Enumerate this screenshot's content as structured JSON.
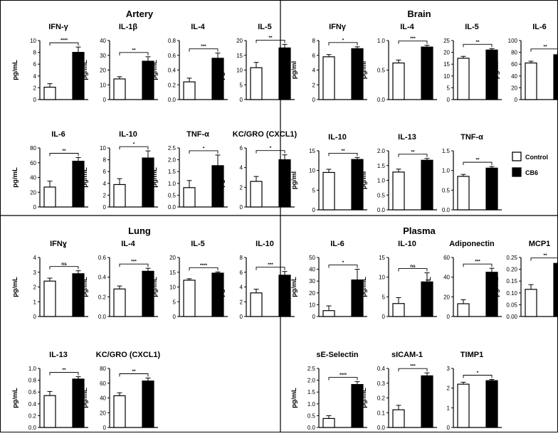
{
  "panels": [
    {
      "name": "artery",
      "title": "Artery"
    },
    {
      "name": "brain",
      "title": "Brain"
    },
    {
      "name": "lung",
      "title": "Lung"
    },
    {
      "name": "plasma",
      "title": "Plasma"
    }
  ],
  "legend": {
    "control": {
      "label": "Control",
      "color": "#ffffff"
    },
    "cb6": {
      "label": "CB6",
      "color": "#000000"
    }
  },
  "chart_data": [
    {
      "type": "bar",
      "panel": "Artery",
      "title": "IFN-γ",
      "ylabel": "pg/mL",
      "ylim": [
        0,
        10
      ],
      "ticks": [
        0,
        2,
        4,
        6,
        8,
        10
      ],
      "categories": [
        "Control",
        "CB6"
      ],
      "values": [
        2.1,
        8.0
      ],
      "errors": [
        0.6,
        0.9
      ],
      "significance": "****"
    },
    {
      "type": "bar",
      "panel": "Artery",
      "title": "IL-1β",
      "ylabel": "pg/mL",
      "ylim": [
        0,
        40
      ],
      "ticks": [
        0,
        10,
        20,
        30,
        40
      ],
      "categories": [
        "Control",
        "CB6"
      ],
      "values": [
        14,
        26
      ],
      "errors": [
        1.5,
        3
      ],
      "significance": "**"
    },
    {
      "type": "bar",
      "panel": "Artery",
      "title": "IL-4",
      "ylabel": "pg/mL",
      "ylim": [
        0,
        0.8
      ],
      "ticks": [
        0.0,
        0.2,
        0.4,
        0.6,
        0.8
      ],
      "tick_labels": [
        "0.0",
        "0.2",
        "0.4",
        "0.6",
        "0.8"
      ],
      "categories": [
        "Control",
        "CB6"
      ],
      "values": [
        0.24,
        0.56
      ],
      "errors": [
        0.05,
        0.07
      ],
      "significance": "***"
    },
    {
      "type": "bar",
      "panel": "Artery",
      "title": "IL-5",
      "ylabel": "pg/mL",
      "ylim": [
        0,
        20
      ],
      "ticks": [
        0,
        5,
        10,
        15,
        20
      ],
      "categories": [
        "Control",
        "CB6"
      ],
      "values": [
        10.8,
        17.5
      ],
      "errors": [
        1.8,
        1.2
      ],
      "significance": "**"
    },
    {
      "type": "bar",
      "panel": "Artery",
      "title": "IL-6",
      "ylabel": "pg/mL",
      "ylim": [
        0,
        80
      ],
      "ticks": [
        0,
        20,
        40,
        60,
        80
      ],
      "categories": [
        "Control",
        "CB6"
      ],
      "values": [
        27,
        62
      ],
      "errors": [
        8,
        5
      ],
      "significance": "**"
    },
    {
      "type": "bar",
      "panel": "Artery",
      "title": "IL-10",
      "ylabel": "pg/mL",
      "ylim": [
        0,
        10
      ],
      "ticks": [
        0,
        2,
        4,
        6,
        8,
        10
      ],
      "categories": [
        "Control",
        "CB6"
      ],
      "values": [
        3.8,
        8.3
      ],
      "errors": [
        1.0,
        1.2
      ],
      "significance": "*"
    },
    {
      "type": "bar",
      "panel": "Artery",
      "title": "TNF-α",
      "ylabel": "pg/mL",
      "ylim": [
        0,
        2.5
      ],
      "ticks": [
        0.0,
        0.5,
        1.0,
        1.5,
        2.0,
        2.5
      ],
      "tick_labels": [
        "0.0",
        "0.5",
        "1.0",
        "1.5",
        "2.0",
        "2.5"
      ],
      "categories": [
        "Control",
        "CB6"
      ],
      "values": [
        0.82,
        1.75
      ],
      "errors": [
        0.3,
        0.45
      ],
      "significance": "*"
    },
    {
      "type": "bar",
      "panel": "Artery",
      "title": "KC/GRO (CXCL1)",
      "ylabel": "pg/mL",
      "ylim": [
        0,
        6
      ],
      "ticks": [
        0,
        2,
        4,
        6
      ],
      "categories": [
        "Control",
        "CB6"
      ],
      "values": [
        2.6,
        4.8
      ],
      "errors": [
        0.5,
        0.5
      ],
      "significance": "*"
    },
    {
      "type": "bar",
      "panel": "Brain",
      "title": "IFNγ",
      "ylabel": "pg/ml",
      "ylim": [
        0,
        8
      ],
      "ticks": [
        0,
        2,
        4,
        6,
        8
      ],
      "categories": [
        "Control",
        "CB6"
      ],
      "values": [
        5.8,
        6.9
      ],
      "errors": [
        0.3,
        0.25
      ],
      "significance": "*"
    },
    {
      "type": "bar",
      "panel": "Brain",
      "title": "IL-4",
      "ylabel": "pg/ml",
      "ylim": [
        0,
        1.0
      ],
      "ticks": [
        0.0,
        0.5,
        1.0
      ],
      "tick_labels": [
        "0.0",
        "0.5",
        "1.0"
      ],
      "categories": [
        "Control",
        "CB6"
      ],
      "values": [
        0.62,
        0.89
      ],
      "errors": [
        0.05,
        0.03
      ],
      "significance": "***"
    },
    {
      "type": "bar",
      "panel": "Brain",
      "title": "IL-5",
      "ylabel": "pg/ml",
      "ylim": [
        0,
        25
      ],
      "ticks": [
        0,
        5,
        10,
        15,
        20,
        25
      ],
      "categories": [
        "Control",
        "CB6"
      ],
      "values": [
        17.5,
        21
      ],
      "errors": [
        0.8,
        0.6
      ],
      "significance": "**"
    },
    {
      "type": "bar",
      "panel": "Brain",
      "title": "IL-6",
      "ylabel": "pg/ml",
      "ylim": [
        0,
        100
      ],
      "ticks": [
        0,
        20,
        40,
        60,
        80,
        100
      ],
      "categories": [
        "Control",
        "CB6"
      ],
      "values": [
        62,
        76
      ],
      "errors": [
        3,
        2.5
      ],
      "significance": "**"
    },
    {
      "type": "bar",
      "panel": "Brain",
      "title": "IL-10",
      "ylabel": "pg/ml",
      "ylim": [
        0,
        15
      ],
      "ticks": [
        0,
        5,
        10,
        15
      ],
      "categories": [
        "Control",
        "CB6"
      ],
      "values": [
        9.5,
        12.8
      ],
      "errors": [
        0.8,
        0.5
      ],
      "significance": "**"
    },
    {
      "type": "bar",
      "panel": "Brain",
      "title": "IL-13",
      "ylabel": "pg/ml",
      "ylim": [
        0,
        2.0
      ],
      "ticks": [
        0.0,
        0.5,
        1.0,
        1.5,
        2.0
      ],
      "tick_labels": [
        "0.0",
        "0.5",
        "1.0",
        "1.5",
        "2.0"
      ],
      "categories": [
        "Control",
        "CB6"
      ],
      "values": [
        1.28,
        1.68
      ],
      "errors": [
        0.1,
        0.06
      ],
      "significance": "**"
    },
    {
      "type": "bar",
      "panel": "Brain",
      "title": "TNF-α",
      "ylabel": "pg/ml",
      "ylim": [
        0,
        1.5
      ],
      "ticks": [
        0.0,
        0.5,
        1.0,
        1.5
      ],
      "tick_labels": [
        "0.0",
        "0.5",
        "1.0",
        "1.5"
      ],
      "categories": [
        "Control",
        "CB6"
      ],
      "values": [
        0.85,
        1.06
      ],
      "errors": [
        0.05,
        0.04
      ],
      "significance": "**"
    },
    {
      "type": "bar",
      "panel": "Lung",
      "title": "IFNɣ",
      "ylabel": "pg/mL",
      "ylim": [
        0,
        4
      ],
      "ticks": [
        0,
        1,
        2,
        3,
        4
      ],
      "categories": [
        "Control",
        "CB6"
      ],
      "values": [
        2.4,
        2.9
      ],
      "errors": [
        0.2,
        0.2
      ],
      "significance": "ns"
    },
    {
      "type": "bar",
      "panel": "Lung",
      "title": "IL-4",
      "ylabel": "pg/mL",
      "ylim": [
        0,
        0.6
      ],
      "ticks": [
        0.0,
        0.2,
        0.4,
        0.6
      ],
      "tick_labels": [
        "0.0",
        "0.2",
        "0.4",
        "0.6"
      ],
      "categories": [
        "Control",
        "CB6"
      ],
      "values": [
        0.28,
        0.46
      ],
      "errors": [
        0.03,
        0.03
      ],
      "significance": "***"
    },
    {
      "type": "bar",
      "panel": "Lung",
      "title": "IL-5",
      "ylabel": "pg/mL",
      "ylim": [
        0,
        20
      ],
      "ticks": [
        0,
        5,
        10,
        15,
        20
      ],
      "categories": [
        "Control",
        "CB6"
      ],
      "values": [
        12.3,
        14.7
      ],
      "errors": [
        0.5,
        0.4
      ],
      "significance": "****"
    },
    {
      "type": "bar",
      "panel": "Lung",
      "title": "IL-10",
      "ylabel": "pg/mL",
      "ylim": [
        0,
        8
      ],
      "ticks": [
        0,
        2,
        4,
        6,
        8
      ],
      "categories": [
        "Control",
        "CB6"
      ],
      "values": [
        3.2,
        5.6
      ],
      "errors": [
        0.5,
        0.5
      ],
      "significance": "***"
    },
    {
      "type": "bar",
      "panel": "Lung",
      "title": "IL-13",
      "ylabel": "pg/mL",
      "ylim": [
        0,
        1.0
      ],
      "ticks": [
        0.0,
        0.2,
        0.4,
        0.6,
        0.8,
        1.0
      ],
      "tick_labels": [
        "0.0",
        "0.2",
        "0.4",
        "0.6",
        "0.8",
        "1.0"
      ],
      "categories": [
        "Control",
        "CB6"
      ],
      "values": [
        0.54,
        0.82
      ],
      "errors": [
        0.07,
        0.04
      ],
      "significance": "**"
    },
    {
      "type": "bar",
      "panel": "Lung",
      "title": "KC/GRO (CXCL1)",
      "ylabel": "pg/mL",
      "ylim": [
        0,
        80
      ],
      "ticks": [
        0,
        20,
        40,
        60,
        80
      ],
      "categories": [
        "Control",
        "CB6"
      ],
      "values": [
        43,
        63
      ],
      "errors": [
        4,
        4
      ],
      "significance": "**"
    },
    {
      "type": "bar",
      "panel": "Plasma",
      "title": "IL-6",
      "ylabel": "pg/mL",
      "ylim": [
        0,
        50
      ],
      "ticks": [
        0,
        10,
        20,
        30,
        40,
        50
      ],
      "categories": [
        "Control",
        "CB6"
      ],
      "values": [
        5,
        31
      ],
      "errors": [
        4,
        9
      ],
      "significance": "*"
    },
    {
      "type": "bar",
      "panel": "Plasma",
      "title": "IL-10",
      "ylabel": "pg/mL",
      "ylim": [
        0,
        15
      ],
      "ticks": [
        0,
        5,
        10,
        15
      ],
      "categories": [
        "Control",
        "CB6"
      ],
      "values": [
        3.3,
        8.8
      ],
      "errors": [
        1.5,
        2.3
      ],
      "significance": "ns"
    },
    {
      "type": "bar",
      "panel": "Plasma",
      "title": "Adiponectin",
      "ylabel": "pg/mL",
      "ylim": [
        0,
        60
      ],
      "ticks": [
        0,
        20,
        40,
        60
      ],
      "categories": [
        "Control",
        "CB6"
      ],
      "values": [
        13,
        45
      ],
      "errors": [
        4,
        4
      ],
      "significance": "***"
    },
    {
      "type": "bar",
      "panel": "Plasma",
      "title": "MCP1",
      "ylabel": "pg/mL",
      "ylim": [
        0,
        0.25
      ],
      "ticks": [
        0.0,
        0.05,
        0.1,
        0.15,
        0.2,
        0.25
      ],
      "tick_labels": [
        "0.00",
        "0.05",
        "0.10",
        "0.15",
        "0.20",
        "0.25"
      ],
      "categories": [
        "Control",
        "CB6"
      ],
      "values": [
        0.115,
        0.225
      ],
      "errors": [
        0.02,
        0.005
      ],
      "significance": "**"
    },
    {
      "type": "bar",
      "panel": "Plasma",
      "title": "sE-Selectin",
      "ylabel": "pg/mL",
      "ylim": [
        0,
        2.5
      ],
      "ticks": [
        0.0,
        0.5,
        1.0,
        1.5,
        2.0,
        2.5
      ],
      "tick_labels": [
        "0.0",
        "0.5",
        "1.0",
        "1.5",
        "2.0",
        "2.5"
      ],
      "categories": [
        "Control",
        "CB6"
      ],
      "values": [
        0.38,
        1.82
      ],
      "errors": [
        0.12,
        0.12
      ],
      "significance": "****"
    },
    {
      "type": "bar",
      "panel": "Plasma",
      "title": "sICAM-1",
      "ylabel": "pg/mL",
      "ylim": [
        0,
        0.4
      ],
      "ticks": [
        0.0,
        0.1,
        0.2,
        0.3,
        0.4
      ],
      "tick_labels": [
        "0.0",
        "0.1",
        "0.2",
        "0.3",
        "0.4"
      ],
      "categories": [
        "Control",
        "CB6"
      ],
      "values": [
        0.12,
        0.35
      ],
      "errors": [
        0.03,
        0.02
      ],
      "significance": "***"
    },
    {
      "type": "bar",
      "panel": "Plasma",
      "title": "TIMP1",
      "ylabel": "pg/mL",
      "ylim": [
        0,
        3
      ],
      "ticks": [
        0,
        1,
        2,
        3
      ],
      "categories": [
        "Control",
        "CB6"
      ],
      "values": [
        2.2,
        2.38
      ],
      "errors": [
        0.1,
        0.06
      ],
      "significance": "*"
    }
  ]
}
